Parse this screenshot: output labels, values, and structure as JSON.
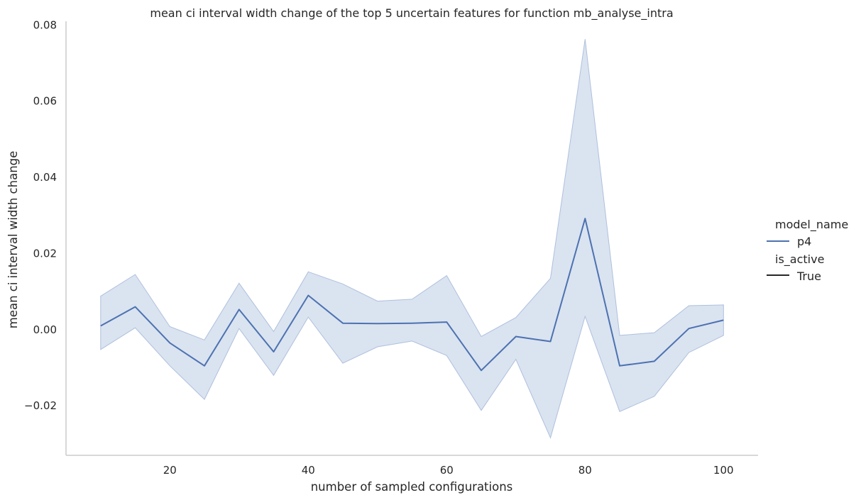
{
  "chart_data": {
    "type": "line",
    "title": "mean ci interval width change of the top 5 uncertain features for function mb_analyse_intra",
    "xlabel": "number of sampled configurations",
    "ylabel": "mean ci interval width change",
    "xlim": [
      5,
      105
    ],
    "ylim": [
      -0.033,
      0.081
    ],
    "xticks": [
      20,
      40,
      60,
      80,
      100
    ],
    "yticks": [
      -0.02,
      0.0,
      0.02,
      0.04,
      0.06,
      0.08
    ],
    "ytick_labels": [
      "−0.02",
      "0.00",
      "0.02",
      "0.04",
      "0.06",
      "0.08"
    ],
    "grid": false,
    "legend_position": "right",
    "series": [
      {
        "name": "p4",
        "color": "#4c72b0",
        "band_color": "#aec0dd",
        "x": [
          10,
          15,
          20,
          25,
          30,
          35,
          40,
          45,
          50,
          55,
          60,
          65,
          70,
          75,
          80,
          85,
          90,
          95,
          100
        ],
        "y": [
          0.001,
          0.006,
          -0.0035,
          -0.0095,
          0.0053,
          -0.0058,
          0.009,
          0.0017,
          0.0016,
          0.0017,
          0.002,
          -0.0107,
          -0.0018,
          -0.0031,
          0.0292,
          -0.0095,
          -0.0083,
          0.0003,
          0.0025
        ],
        "ci_upper": [
          0.0088,
          0.0145,
          0.0008,
          -0.0027,
          0.0122,
          -0.0005,
          0.0152,
          0.012,
          0.0075,
          0.008,
          0.0142,
          -0.0018,
          0.0032,
          0.0135,
          0.0763,
          -0.0015,
          -0.0008,
          0.0063,
          0.0065
        ],
        "ci_lower": [
          -0.0052,
          0.0005,
          -0.0095,
          -0.0183,
          0.0003,
          -0.012,
          0.0033,
          -0.0088,
          -0.0045,
          -0.003,
          -0.0068,
          -0.0212,
          -0.0078,
          -0.0284,
          0.0035,
          -0.0215,
          -0.0175,
          -0.006,
          -0.0015
        ]
      }
    ],
    "legend": {
      "model_name_title": "model_name",
      "model_name_entry": "p4",
      "is_active_title": "is_active",
      "is_active_entry": "True"
    }
  }
}
